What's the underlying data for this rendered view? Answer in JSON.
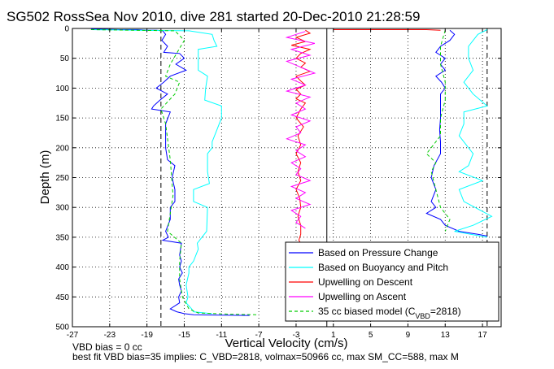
{
  "chart_data": {
    "type": "line",
    "title": "SG502 RossSea Nov 2010, dive 281 started 20-Dec-2010 21:28:59",
    "xlabel": "Vertical Velocity (cm/s)",
    "ylabel": "Depth (m)",
    "xlim": [
      -27,
      19
    ],
    "ylim": [
      0,
      500
    ],
    "y_reversed": true,
    "x_ticks": [
      -27,
      -23,
      -19,
      -15,
      -11,
      -7,
      -3,
      1,
      5,
      9,
      13,
      17
    ],
    "y_ticks": [
      0,
      50,
      100,
      150,
      200,
      250,
      300,
      350,
      400,
      450,
      500
    ],
    "grid": true,
    "legend_position": "bottom-right",
    "vertical_reference_lines": [
      -17.5,
      0.3,
      17.5
    ],
    "series": [
      {
        "name": "Based on Pressure Change",
        "color": "#0000ff",
        "segments": [
          {
            "x": [
              -25,
              -22,
              -20,
              -19,
              -18,
              -17.3,
              -17.0,
              -17.4,
              -16.8,
              -17.2,
              -15.5,
              -15.0,
              -15.9,
              -14.8,
              -16.5,
              -17.2,
              -18.0,
              -16.8,
              -17.6,
              -18.3,
              -18.5,
              -16.5,
              -17.0,
              -17.0,
              -17.0,
              -16.8,
              -16.0,
              -16.3,
              -16.0,
              -16.0,
              -16.5,
              -16.5,
              -17.0,
              -16.7,
              -17.3,
              -15.3,
              -15.4,
              -15.5,
              -15.3,
              -15.5,
              -15.2,
              -15.6,
              -15.5,
              -15.3,
              -15.6,
              -15.5,
              -16.5,
              -15.8,
              -15.0,
              -14.0,
              -8.0
            ],
            "y": [
              1,
              2,
              2,
              3,
              3,
              4,
              10,
              20,
              30,
              40,
              42,
              50,
              60,
              70,
              80,
              90,
              100,
              110,
              120,
              130,
              135,
              140,
              160,
              180,
              200,
              220,
              230,
              250,
              270,
              290,
              300,
              320,
              340,
              350,
              355,
              360,
              370,
              380,
              390,
              400,
              410,
              420,
              430,
              440,
              450,
              460,
              470,
              475,
              478,
              480,
              481
            ]
          },
          {
            "x": [
              13.5,
              14.0,
              13.5,
              12.5,
              12.0,
              13.0,
              12.5,
              13.0,
              12.0,
              12.6,
              13.0,
              12.5,
              12.5,
              12.5,
              12.4,
              12.5,
              12.5,
              11.8,
              11.5,
              12.0,
              11.5,
              12.0,
              11.0,
              12.5,
              13.0,
              14.5,
              16.5,
              17.5
            ],
            "y": [
              3,
              10,
              20,
              30,
              40,
              50,
              60,
              70,
              80,
              90,
              100,
              110,
              130,
              150,
              170,
              190,
              210,
              230,
              250,
              270,
              290,
              300,
              310,
              320,
              330,
              340,
              345,
              348
            ]
          }
        ]
      },
      {
        "name": "Based on Buoyancy and Pitch",
        "color": "#00ffff",
        "segments": [
          {
            "x": [
              -25,
              -20,
              -14.5,
              -12.0,
              -11.8,
              -11.5,
              -13.5,
              -13.5,
              -13.5,
              -12.5,
              -12.7,
              -12.8,
              -11.0,
              -11.0,
              -11.5,
              -12.0,
              -12.0,
              -12.5,
              -12.5,
              -12.3,
              -14.0,
              -14.0,
              -12.5,
              -12.6,
              -13.6,
              -13.5,
              -14.0,
              -14.5,
              -14.5,
              -14.8,
              -14.6,
              -14.8,
              -14.2,
              -14.0,
              -12.0
            ],
            "y": [
              2,
              3,
              4,
              10,
              20,
              30,
              35,
              50,
              70,
              80,
              100,
              120,
              130,
              150,
              170,
              190,
              200,
              210,
              240,
              260,
              270,
              290,
              300,
              340,
              360,
              370,
              390,
              400,
              410,
              430,
              450,
              460,
              470,
              475,
              478
            ]
          },
          {
            "x": [
              17.5,
              16.5,
              15.5,
              15.5,
              16.0,
              15.0,
              16.0,
              17.5,
              15.0,
              15.0,
              14.5,
              15.5,
              16.0,
              15.5,
              14.5,
              17.0,
              14.5,
              15.0,
              18.0,
              16.0,
              14.0,
              17.5
            ],
            "y": [
              2,
              10,
              30,
              50,
              70,
              90,
              110,
              130,
              140,
              160,
              180,
              200,
              210,
              230,
              240,
              255,
              270,
              290,
              315,
              330,
              340,
              350
            ]
          }
        ]
      },
      {
        "name": "Upwelling on Descent",
        "color": "#ff0000",
        "segments": [
          {
            "x": [
              -2.0,
              -1.5,
              -3.0,
              -2.0,
              -3.5,
              -1.5,
              -2.5,
              -3.0,
              -2.0,
              -2.5,
              -1.5,
              -3.0,
              -2.5,
              -2.0,
              -3.0,
              -2.5,
              -3.0,
              -2.0,
              -2.5,
              -3.0,
              -2.2,
              -2.8,
              -2.5,
              -3.0,
              -2.5,
              -2.8,
              -2.5,
              -3.0,
              -2.6,
              -2.5,
              -2.8,
              -2.5,
              -2.5,
              -2.7,
              -2.5,
              -2.6,
              -2.5,
              -2.5
            ],
            "y": [
              3,
              8,
              15,
              22,
              28,
              35,
              42,
              50,
              58,
              65,
              72,
              80,
              88,
              95,
              102,
              110,
              118,
              125,
              135,
              150,
              165,
              180,
              195,
              210,
              225,
              240,
              255,
              270,
              285,
              300,
              315,
              330,
              345,
              355,
              360,
              365,
              370,
              372
            ]
          },
          {
            "x": [
              1.0,
              3.0,
              6.0,
              9.0,
              11.0,
              12.5
            ],
            "y": [
              2,
              2,
              2,
              2,
              2,
              3
            ]
          }
        ]
      },
      {
        "name": "Upwelling on Ascent",
        "color": "#ff00ff",
        "segments": [
          {
            "x": [
              -2.0,
              -4.0,
              -1.0,
              -3.5,
              -1.5,
              -4.0,
              -2.5,
              -1.0,
              -3.5,
              -2.0,
              -4.0,
              -1.5,
              -3.0,
              -2.0,
              -3.5,
              -1.5,
              -3.0,
              -2.5,
              -4.0,
              -2.0,
              -3.0,
              -2.0,
              -3.5,
              -2.5,
              -3.0,
              -1.5,
              -3.5,
              -2.0,
              -3.0,
              -1.5,
              -3.5,
              -2.5,
              -3.0,
              -2.0
            ],
            "y": [
              5,
              15,
              25,
              35,
              45,
              55,
              65,
              75,
              85,
              95,
              105,
              115,
              125,
              135,
              145,
              155,
              165,
              175,
              185,
              195,
              205,
              215,
              225,
              235,
              245,
              255,
              265,
              275,
              285,
              295,
              305,
              315,
              325,
              335
            ]
          }
        ]
      },
      {
        "name": "35 cc biased model",
        "legend_label": "35 cc biased model (C",
        "legend_sub": "VBD",
        "legend_suffix": "=2818)",
        "color": "#00cc00",
        "dashed": true,
        "segments": [
          {
            "x": [
              -25,
              -16.0,
              -15.0,
              -16.5,
              -17.0,
              -15.5,
              -16.0,
              -17.5,
              -17.0,
              -16.5,
              -16.2,
              -16.8,
              -15.3,
              -15.5,
              -15.5,
              -15.2,
              -14.5,
              -13.5,
              -10.0,
              -7.0
            ],
            "y": [
              2,
              4,
              20,
              60,
              80,
              90,
              110,
              135,
              160,
              220,
              280,
              340,
              360,
              390,
              420,
              450,
              470,
              477,
              479,
              480
            ]
          },
          {
            "x": [
              13.0,
              12.5,
              12.5,
              13.0,
              13.0,
              12.5,
              12.5,
              11.0,
              12.0,
              11.5,
              12.0,
              12.5,
              13.5,
              13.0
            ],
            "y": [
              3,
              30,
              60,
              90,
              120,
              150,
              180,
              210,
              225,
              240,
              270,
              300,
              320,
              340
            ]
          }
        ]
      }
    ]
  },
  "notes": {
    "vbd_bias": "VBD bias = 0 cc",
    "best_fit": "best fit VBD bias=35 implies: C_VBD=2818, volmax=50966 cc, max SM_CC=588, max M"
  }
}
